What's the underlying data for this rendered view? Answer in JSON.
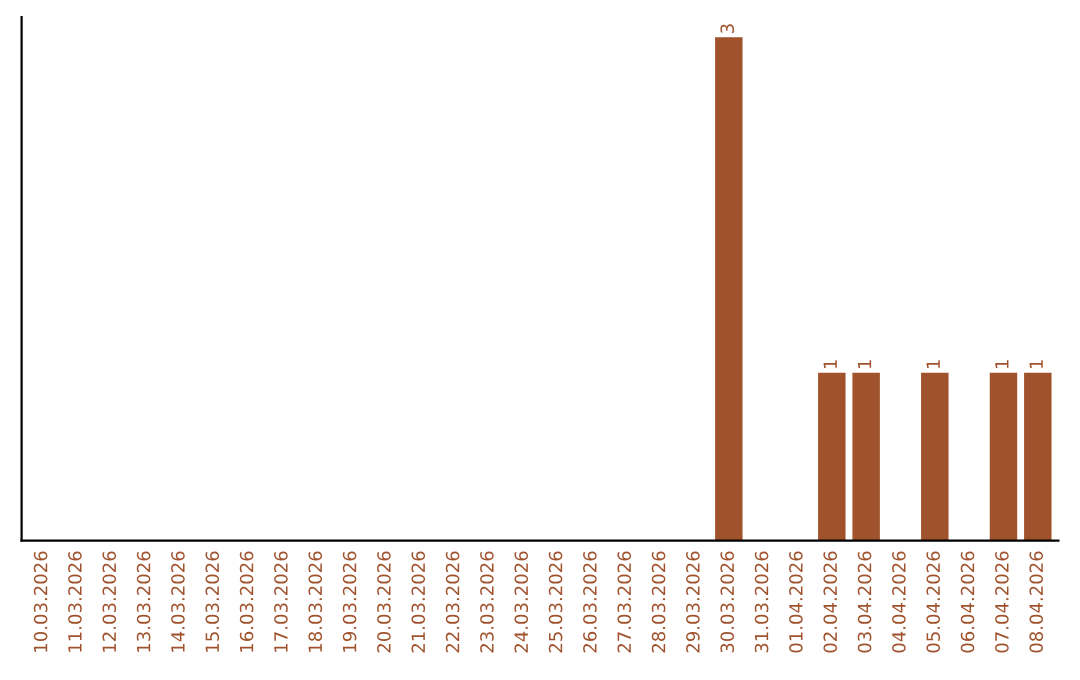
{
  "chart_data": {
    "type": "bar",
    "categories": [
      "10.03.2026",
      "11.03.2026",
      "12.03.2026",
      "13.03.2026",
      "14.03.2026",
      "15.03.2026",
      "16.03.2026",
      "17.03.2026",
      "18.03.2026",
      "19.03.2026",
      "20.03.2026",
      "21.03.2026",
      "22.03.2026",
      "23.03.2026",
      "24.03.2026",
      "25.03.2026",
      "26.03.2026",
      "27.03.2026",
      "28.03.2026",
      "29.03.2026",
      "30.03.2026",
      "31.03.2026",
      "01.04.2026",
      "02.04.2026",
      "03.04.2026",
      "04.04.2026",
      "05.04.2026",
      "06.04.2026",
      "07.04.2026",
      "08.04.2026"
    ],
    "values": [
      null,
      null,
      null,
      null,
      null,
      null,
      null,
      null,
      null,
      null,
      null,
      null,
      null,
      null,
      null,
      null,
      null,
      null,
      null,
      null,
      3,
      null,
      null,
      1,
      1,
      null,
      1,
      null,
      1,
      1
    ],
    "data_labels": true,
    "color": "#a0522d",
    "tick_labels": "x"
  }
}
